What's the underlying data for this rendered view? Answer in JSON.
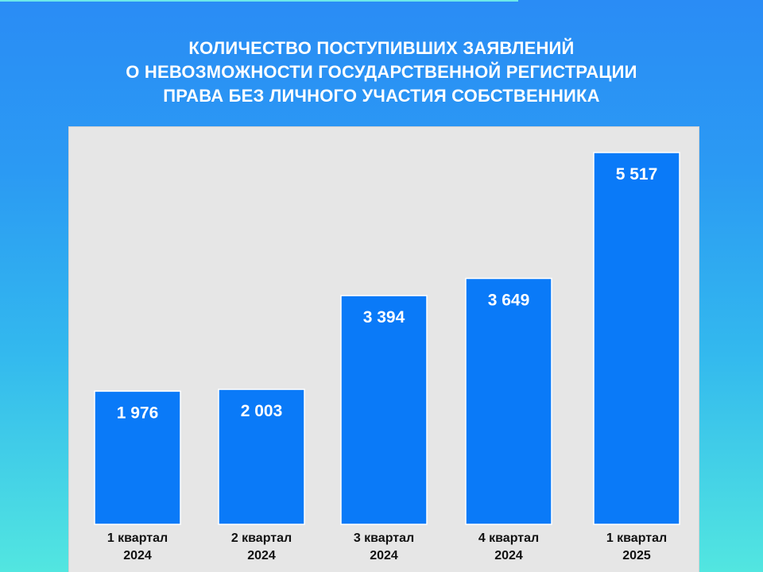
{
  "chart_data": {
    "type": "bar",
    "title_lines": [
      "КОЛИЧЕСТВО ПОСТУПИВШИХ ЗАЯВЛЕНИЙ",
      "О НЕВОЗМОЖНОСТИ ГОСУДАРСТВЕННОЙ РЕГИСТРАЦИИ",
      "ПРАВА БЕЗ ЛИЧНОГО УЧАСТИЯ СОБСТВЕННИКА"
    ],
    "categories": [
      [
        "1 квартал",
        "2024"
      ],
      [
        "2 квартал",
        "2024"
      ],
      [
        "3 квартал",
        "2024"
      ],
      [
        "4 квартал",
        "2024"
      ],
      [
        "1 квартал",
        "2025"
      ]
    ],
    "values": [
      1976,
      2003,
      3394,
      3649,
      5517
    ],
    "value_labels": [
      "1 976",
      "2 003",
      "3 394",
      "3 649",
      "5 517"
    ],
    "ylim": [
      0,
      5800
    ],
    "grid": false,
    "legend": "none",
    "bar_color": "#0a7af8",
    "plot_background": "#e6e6e6"
  }
}
